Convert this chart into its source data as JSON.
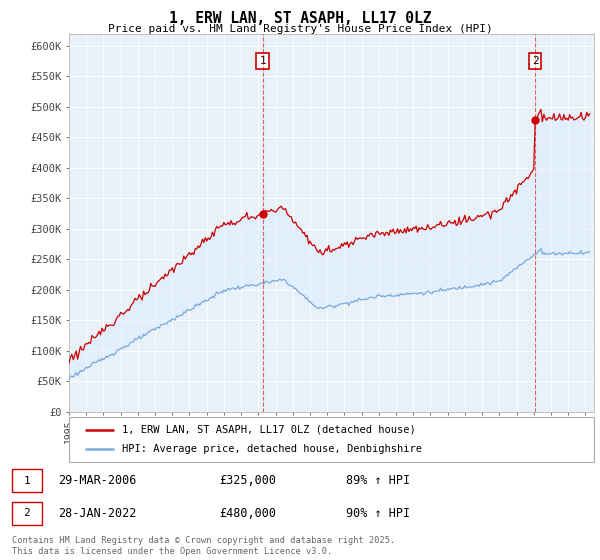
{
  "title": "1, ERW LAN, ST ASAPH, LL17 0LZ",
  "subtitle": "Price paid vs. HM Land Registry's House Price Index (HPI)",
  "xlim_start": 1995.0,
  "xlim_end": 2025.5,
  "ylim": [
    0,
    620000
  ],
  "yticks": [
    0,
    50000,
    100000,
    150000,
    200000,
    250000,
    300000,
    350000,
    400000,
    450000,
    500000,
    550000,
    600000
  ],
  "ytick_labels": [
    "£0",
    "£50K",
    "£100K",
    "£150K",
    "£200K",
    "£250K",
    "£300K",
    "£350K",
    "£400K",
    "£450K",
    "£500K",
    "£550K",
    "£600K"
  ],
  "property_color": "#cc0000",
  "hpi_color": "#7aabdb",
  "fill_color": "#ddeeff",
  "dashed_line_color": "#cc0000",
  "sale1_t": 2006.25,
  "sale1_price": 325000,
  "sale2_t": 2022.083,
  "sale2_price": 480000,
  "annotation1_label": "1",
  "annotation2_label": "2",
  "legend_property": "1, ERW LAN, ST ASAPH, LL17 0LZ (detached house)",
  "legend_hpi": "HPI: Average price, detached house, Denbighshire",
  "note1_label": "1",
  "note1_date": "29-MAR-2006",
  "note1_price": "£325,000",
  "note1_hpi": "89% ↑ HPI",
  "note2_label": "2",
  "note2_date": "28-JAN-2022",
  "note2_price": "£480,000",
  "note2_hpi": "90% ↑ HPI",
  "footer": "Contains HM Land Registry data © Crown copyright and database right 2025.\nThis data is licensed under the Open Government Licence v3.0.",
  "background_color": "#ffffff",
  "chart_bg_color": "#e8f0f8",
  "grid_color": "#ffffff"
}
